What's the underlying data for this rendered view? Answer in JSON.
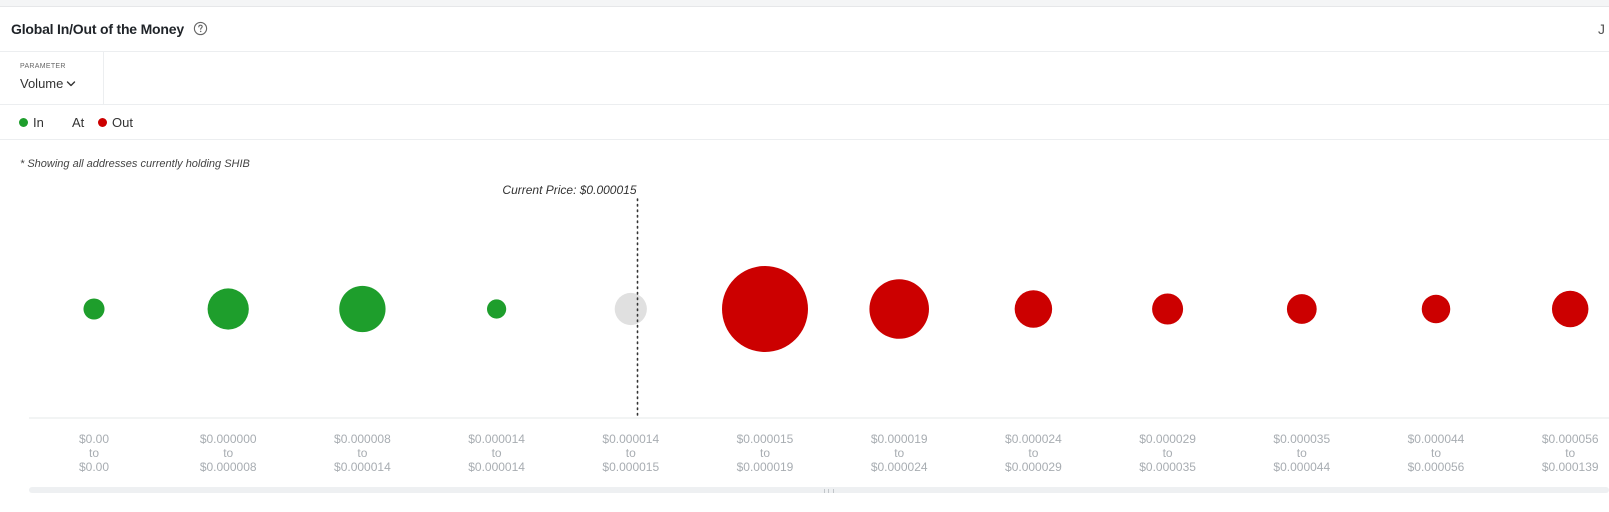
{
  "header": {
    "title": "Global In/Out of the Money",
    "help_icon": "question-circle-icon",
    "edge_glyph": "J"
  },
  "parameter": {
    "label": "PARAMETER",
    "value": "Volume",
    "icon": "chevron-down-icon"
  },
  "legend": {
    "items": [
      {
        "label": "In",
        "color": "#1e9e2c",
        "has_dot": true
      },
      {
        "label": "At",
        "color": "#e0e0e0",
        "has_dot": false
      },
      {
        "label": "Out",
        "color": "#cc0000",
        "has_dot": true
      }
    ]
  },
  "note": "* Showing all addresses currently holding SHIB",
  "chart_data": {
    "type": "scatter",
    "title": "",
    "current_price_label": "Current Price: $0.000015",
    "current_price_position": 4.05,
    "colors": {
      "in": "#1e9e2c",
      "at": "#e0e0e0",
      "out": "#cc0000"
    },
    "bins": [
      {
        "from": "$0.00",
        "to": "$0.00",
        "status": "in",
        "relative_volume": 0.06
      },
      {
        "from": "$0.000000",
        "to": "$0.000008",
        "status": "in",
        "relative_volume": 0.23
      },
      {
        "from": "$0.000008",
        "to": "$0.000014",
        "status": "in",
        "relative_volume": 0.29
      },
      {
        "from": "$0.000014",
        "to": "$0.000014",
        "status": "in",
        "relative_volume": 0.05
      },
      {
        "from": "$0.000014",
        "to": "$0.000015",
        "status": "at",
        "relative_volume": 0.14
      },
      {
        "from": "$0.000015",
        "to": "$0.000019",
        "status": "out",
        "relative_volume": 1.0
      },
      {
        "from": "$0.000019",
        "to": "$0.000024",
        "status": "out",
        "relative_volume": 0.48
      },
      {
        "from": "$0.000024",
        "to": "$0.000029",
        "status": "out",
        "relative_volume": 0.19
      },
      {
        "from": "$0.000029",
        "to": "$0.000035",
        "status": "out",
        "relative_volume": 0.13
      },
      {
        "from": "$0.000035",
        "to": "$0.000044",
        "status": "out",
        "relative_volume": 0.12
      },
      {
        "from": "$0.000044",
        "to": "$0.000056",
        "status": "out",
        "relative_volume": 0.11
      },
      {
        "from": "$0.000056",
        "to": "$0.000139",
        "status": "out",
        "relative_volume": 0.18
      }
    ],
    "connector_word": "to",
    "legend_position": "top-left",
    "grid": false
  }
}
